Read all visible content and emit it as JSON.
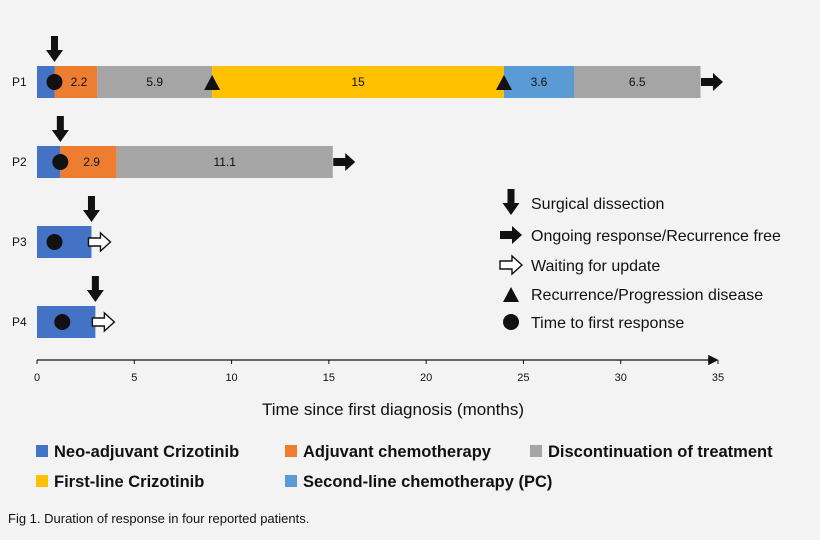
{
  "chart_data": {
    "type": "bar",
    "subtype": "swimmer-plot",
    "xlabel": "Time since first diagnosis (months)",
    "xlim": [
      0,
      35
    ],
    "x_ticks": [
      0,
      5,
      10,
      15,
      20,
      25,
      30,
      35
    ],
    "caption": "Fig 1. Duration of response in four reported patients.",
    "colors": {
      "neo": "#4472c4",
      "adjuvant": "#ed7d31",
      "discontinuation": "#a5a5a5",
      "first_line": "#ffc000",
      "second_line": "#5b9bd5"
    },
    "patients": [
      {
        "label": "P1",
        "segments": [
          {
            "phase": "neo",
            "start": 0,
            "end": 0.9,
            "label": ""
          },
          {
            "phase": "adjuvant",
            "start": 0.9,
            "end": 3.1,
            "label": "2.2"
          },
          {
            "phase": "discontinuation",
            "start": 3.1,
            "end": 9.0,
            "label": "5.9"
          },
          {
            "phase": "first_line",
            "start": 9.0,
            "end": 24.0,
            "label": "15"
          },
          {
            "phase": "second_line",
            "start": 24.0,
            "end": 27.6,
            "label": "3.6"
          },
          {
            "phase": "discontinuation",
            "start": 27.6,
            "end": 34.1,
            "label": "6.5"
          }
        ],
        "surgery": 0.9,
        "first_response": 0.9,
        "progression": [
          9.0,
          24.0
        ],
        "end_marker": "ongoing",
        "end": 34.1
      },
      {
        "label": "P2",
        "segments": [
          {
            "phase": "neo",
            "start": 0,
            "end": 1.2,
            "label": ""
          },
          {
            "phase": "adjuvant",
            "start": 1.2,
            "end": 4.1,
            "label": "2.9"
          },
          {
            "phase": "discontinuation",
            "start": 4.1,
            "end": 15.2,
            "label": "11.1"
          }
        ],
        "surgery": 1.2,
        "first_response": 1.2,
        "progression": [],
        "end_marker": "ongoing",
        "end": 15.2
      },
      {
        "label": "P3",
        "segments": [
          {
            "phase": "neo",
            "start": 0,
            "end": 2.8,
            "label": ""
          }
        ],
        "surgery": 2.8,
        "first_response": 0.9,
        "progression": [],
        "end_marker": "waiting",
        "end": 2.8
      },
      {
        "label": "P4",
        "segments": [
          {
            "phase": "neo",
            "start": 0,
            "end": 3.0,
            "label": ""
          }
        ],
        "surgery": 3.0,
        "first_response": 1.3,
        "progression": [],
        "end_marker": "waiting",
        "end": 3.0
      }
    ],
    "symbol_legend": [
      {
        "icon": "down-arrow-icon",
        "text": "Surgical dissection"
      },
      {
        "icon": "right-arrow-filled-icon",
        "text": "Ongoing response/Recurrence free"
      },
      {
        "icon": "right-arrow-hollow-icon",
        "text": "Waiting for update"
      },
      {
        "icon": "triangle-icon",
        "text": "Recurrence/Progression disease"
      },
      {
        "icon": "circle-icon",
        "text": "Time to first response"
      }
    ],
    "color_legend": [
      {
        "phase": "neo",
        "text": "Neo-adjuvant Crizotinib"
      },
      {
        "phase": "adjuvant",
        "text": "Adjuvant chemotherapy"
      },
      {
        "phase": "discontinuation",
        "text": "Discontinuation of treatment"
      },
      {
        "phase": "first_line",
        "text": "First-line Crizotinib"
      },
      {
        "phase": "second_line",
        "text": "Second-line chemotherapy (PC)"
      }
    ]
  }
}
